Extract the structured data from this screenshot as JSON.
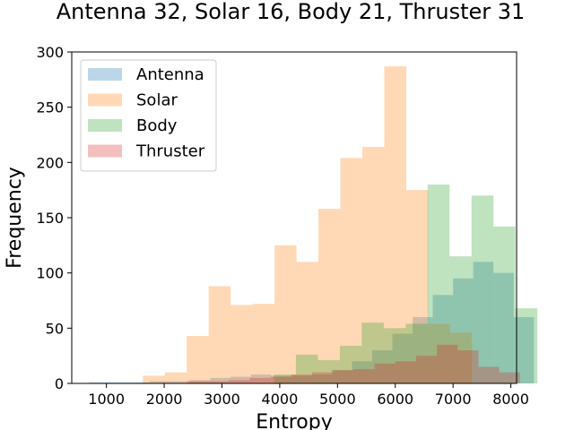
{
  "chart_data": {
    "type": "histogram",
    "title": "Antenna 32, Solar 16, Body 21, Thruster 31",
    "xlabel": "Entropy",
    "ylabel": "Frequency",
    "xlim": [
      400,
      8100
    ],
    "ylim": [
      0,
      300
    ],
    "xticks": [
      1000,
      2000,
      3000,
      4000,
      5000,
      6000,
      7000,
      8000
    ],
    "yticks": [
      0,
      50,
      100,
      150,
      200,
      250,
      300
    ],
    "legend_position": "top-left",
    "series": [
      {
        "name": "Antenna",
        "color": "#1f77b4",
        "bin_start": 700,
        "bin_width": 350,
        "values": [
          1,
          1,
          1,
          2,
          2,
          3,
          5,
          6,
          8,
          7,
          7,
          8,
          12,
          20,
          30,
          45,
          60,
          80,
          95,
          110,
          100,
          60
        ]
      },
      {
        "name": "Solar",
        "color": "#ff7f0e",
        "bin_start": 1250,
        "bin_width": 380,
        "values": [
          0,
          7,
          10,
          43,
          88,
          71,
          72,
          125,
          110,
          158,
          204,
          214,
          287,
          175,
          54,
          46
        ]
      },
      {
        "name": "Body",
        "color": "#2ca02c",
        "bin_start": 3900,
        "bin_width": 380,
        "values": [
          8,
          26,
          21,
          34,
          55,
          50,
          54,
          180,
          115,
          170,
          142,
          68
        ]
      },
      {
        "name": "Thruster",
        "color": "#d62728",
        "bin_start": 2400,
        "bin_width": 360,
        "values": [
          2,
          2,
          3,
          5,
          6,
          8,
          10,
          12,
          13,
          18,
          20,
          25,
          35,
          30,
          15,
          10
        ]
      }
    ]
  }
}
